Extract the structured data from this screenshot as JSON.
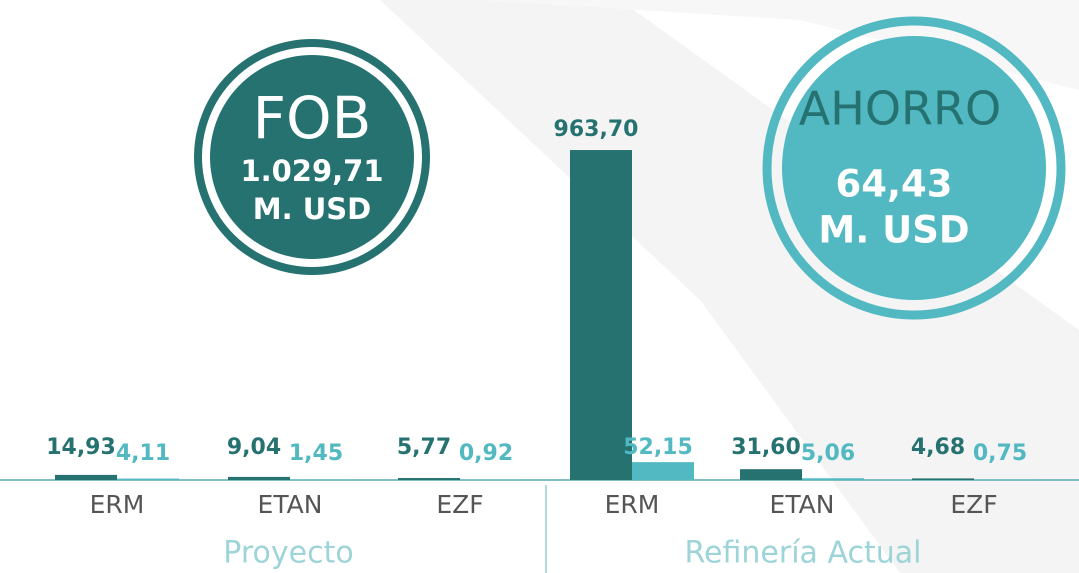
{
  "chart_data": {
    "type": "bar",
    "groups": [
      {
        "label": "Proyecto",
        "size": 3
      },
      {
        "label": "Refinería Actual",
        "size": 3
      }
    ],
    "categories": [
      "ERM",
      "ETAN",
      "EZF",
      "ERM",
      "ETAN",
      "EZF"
    ],
    "series": [
      {
        "color": "#267271",
        "values": [
          14.93,
          9.04,
          5.77,
          963.7,
          31.6,
          4.68
        ],
        "value_labels": [
          "14,93",
          "9,04",
          "5,77",
          "963,70",
          "31,60",
          "4,68"
        ]
      },
      {
        "color": "#52b9c2",
        "values": [
          4.11,
          1.45,
          0.92,
          52.15,
          5.06,
          0.75
        ],
        "value_labels": [
          "4,11",
          "1,45",
          "0,92",
          "52,15",
          "5,06",
          "0,75"
        ]
      }
    ],
    "ylim": [
      0,
      1000
    ],
    "annotations": [
      {
        "title": "FOB",
        "value": "1.029,71",
        "unit": "M. USD"
      },
      {
        "title": "AHORRO",
        "value": "64,43",
        "unit": "M. USD"
      }
    ]
  }
}
